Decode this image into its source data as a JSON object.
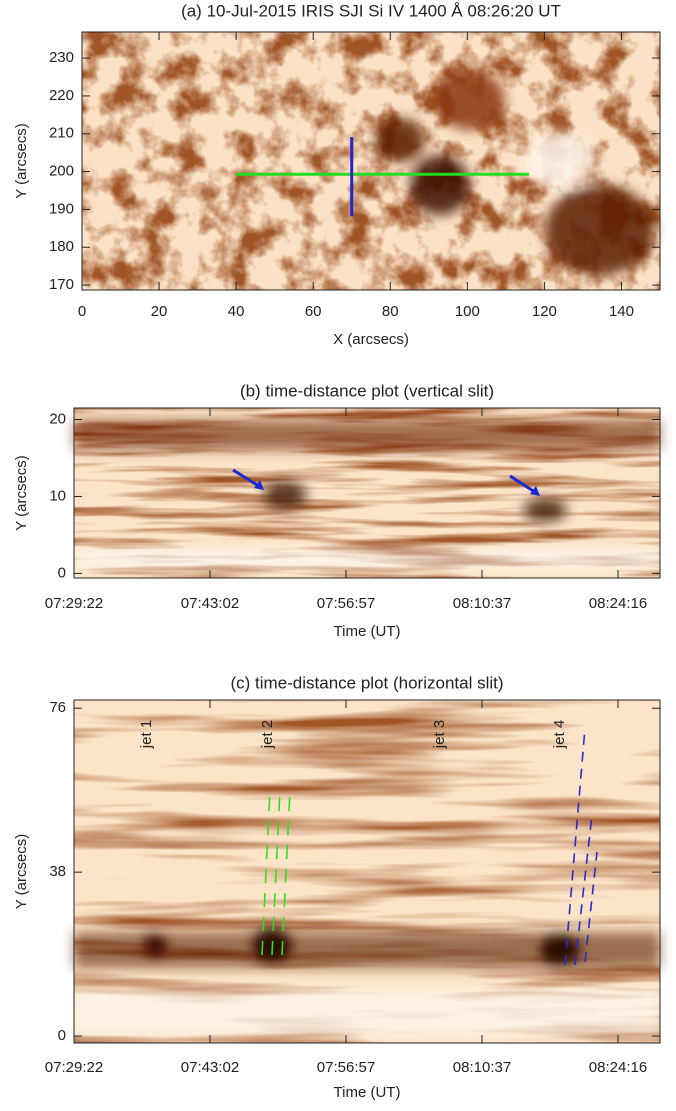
{
  "chart_data": [
    {
      "type": "image",
      "title": "(a) 10-Jul-2015 IRIS SJI Si IV 1400 Å 08:26:20 UT",
      "xlabel": "X (arcsecs)",
      "ylabel": "Y (arcsecs)",
      "xlim": [
        0,
        150
      ],
      "xticks": [
        0,
        20,
        40,
        60,
        80,
        100,
        120,
        140
      ],
      "ylim": [
        168.7,
        236.9
      ],
      "yticks": [
        170,
        180,
        190,
        200,
        210,
        220,
        230
      ],
      "slits": [
        {
          "x": [
            40,
            116
          ],
          "y": [
            199.3,
            199.3
          ],
          "color": "#22dd22"
        },
        {
          "x": [
            70,
            70
          ],
          "y": [
            188.2,
            209.1
          ],
          "color": "#2222cc"
        }
      ]
    },
    {
      "type": "image",
      "title": "(b) time-distance plot (vertical slit)",
      "xlabel": "Time (UT)",
      "ylabel": "Y (arcsecs)",
      "xticks": [
        "07:29:22",
        "07:43:02",
        "07:56:57",
        "08:10:37",
        "08:24:16"
      ],
      "ylim": [
        -0.6,
        21.5
      ],
      "yticks": [
        0,
        10,
        20
      ]
    },
    {
      "type": "image",
      "title": "(c) time-distance plot (horizontal slit)",
      "xlabel": "Time (UT)",
      "ylabel": "Y (arcsecs)",
      "xticks": [
        "07:29:22",
        "07:43:02",
        "07:56:57",
        "08:10:37",
        "08:24:16"
      ],
      "ylim": [
        -1.6,
        77.9
      ],
      "yticks": [
        0,
        38,
        76
      ],
      "annotations": [
        "jet 1",
        "jet 2",
        "jet 3",
        "jet 4"
      ]
    }
  ]
}
